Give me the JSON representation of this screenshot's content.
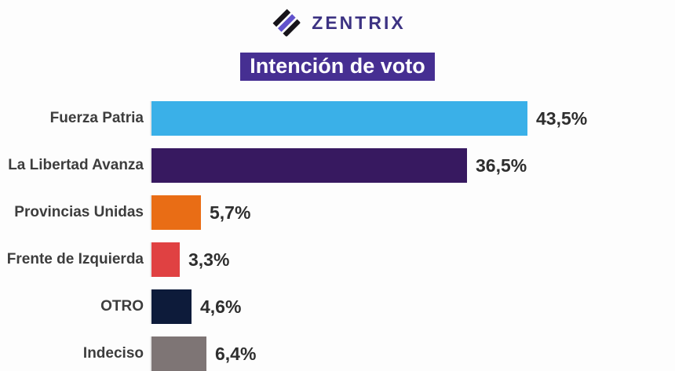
{
  "logo": {
    "brand": "ZENTRIX",
    "icon": "zentrix-diamond-stripes-icon",
    "wordmark_color": "#3d3383",
    "icon_stripe_purple": "#6152cc",
    "icon_stripe_black": "#17141a"
  },
  "title": {
    "text": "Intención de voto",
    "bg_color": "#462f92",
    "text_color": "#ffffff"
  },
  "chart_data": {
    "type": "bar",
    "orientation": "horizontal",
    "title": "Intención de voto",
    "categories": [
      "Fuerza Patria",
      "La Libertad Avanza",
      "Provincias Unidas",
      "Frente de Izquierda",
      "OTRO",
      "Indeciso"
    ],
    "values": [
      43.5,
      36.5,
      5.7,
      3.3,
      4.6,
      6.4
    ],
    "value_labels": [
      "43,5%",
      "36,5%",
      "5,7%",
      "3,3%",
      "4,6%",
      "6,4%"
    ],
    "bar_colors": [
      "#3ab0e8",
      "#371960",
      "#e96d15",
      "#e04142",
      "#0d1b3a",
      "#7e7575"
    ],
    "value_label_position": "right-of-bar",
    "xlim": [
      0,
      50
    ],
    "grid": false,
    "axis_line_color": "#e8e8e8",
    "category_label_color": "#3d3d3d",
    "value_label_color": "#2e2e2e"
  }
}
